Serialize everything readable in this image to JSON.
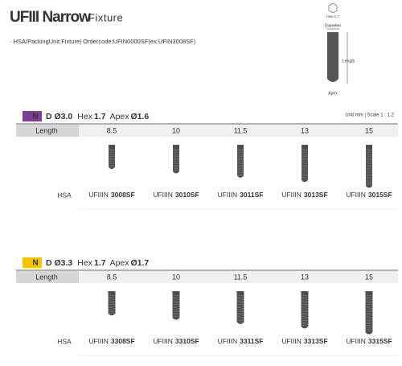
{
  "header": {
    "title_bold": "UFIII Narrow",
    "title_light": "Fixture",
    "order_line": "· HSA/PackingUnit:Fixture| Ordercode:UFIN0000SF(ex:UFIN3008SF)"
  },
  "diagram": {
    "hex": "Hex 1.7",
    "diameter": "Diameter",
    "length": "Length",
    "apex": "Apex"
  },
  "sections": [
    {
      "badge": "N",
      "badge_color": "#7b3f98",
      "diameter": "D Ø3.0",
      "hex_label": "Hex",
      "hex": "1.7",
      "apex_label": "Apex",
      "apex": "Ø1.6",
      "unit": "Unit mm | Scale 1 : 1.2",
      "length_label": "Length",
      "row_label": "HSA",
      "items": [
        {
          "length": 8.5,
          "prefix": "UFIIIN",
          "code": "3008SF"
        },
        {
          "length": 10,
          "prefix": "UFIIIN",
          "code": "3010SF"
        },
        {
          "length": 11.5,
          "prefix": "UFIIIN",
          "code": "3011SF"
        },
        {
          "length": 13,
          "prefix": "UFIIIN",
          "code": "3013SF"
        },
        {
          "length": 15,
          "prefix": "UFIIIN",
          "code": "3015SF"
        }
      ]
    },
    {
      "badge": "N",
      "badge_color": "#f5c400",
      "diameter": "D Ø3.3",
      "hex_label": "Hex",
      "hex": "1.7",
      "apex_label": "Apex",
      "apex": "Ø1.7",
      "length_label": "Length",
      "row_label": "HSA",
      "items": [
        {
          "length": 8.5,
          "prefix": "UFIIIN",
          "code": "3308SF"
        },
        {
          "length": 10,
          "prefix": "UFIIIN",
          "code": "3310SF"
        },
        {
          "length": 11.5,
          "prefix": "UFIIIN",
          "code": "3311SF"
        },
        {
          "length": 13,
          "prefix": "UFIIIN",
          "code": "3313SF"
        },
        {
          "length": 15,
          "prefix": "UFIIIN",
          "code": "3315SF"
        }
      ]
    }
  ]
}
